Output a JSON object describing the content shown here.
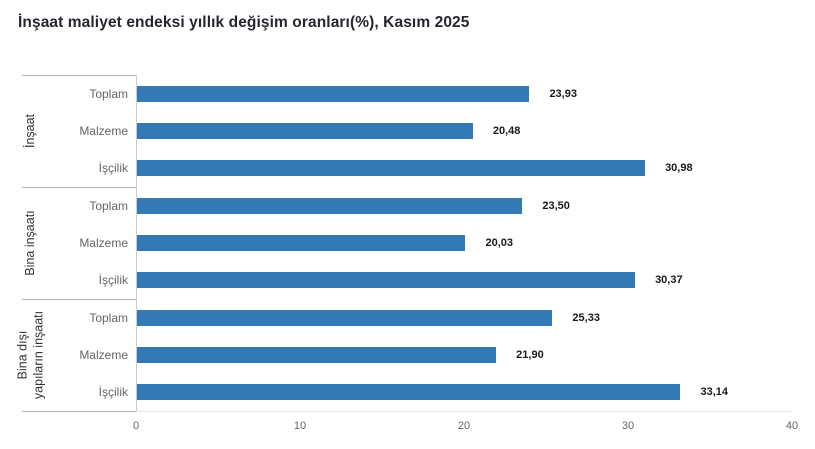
{
  "chart_data": {
    "type": "bar",
    "orientation": "horizontal",
    "title": "İnşaat maliyet endeksi yıllık değişim oranları(%), Kasım 2025",
    "unit": "%",
    "decimal_separator": ",",
    "xlim": [
      0,
      40
    ],
    "x_ticks": [
      "0",
      "10",
      "20",
      "30",
      "40"
    ],
    "grid": false,
    "legend": "none",
    "bar_color": "#3379b5",
    "groups": [
      {
        "name": "İnşaat",
        "name_lines": [
          "İnşaat"
        ],
        "categories": [
          "Toplam",
          "Malzeme",
          "İşçilik"
        ],
        "values": [
          23.93,
          20.48,
          30.98
        ],
        "value_labels": [
          "23,93",
          "20,48",
          "30,98"
        ]
      },
      {
        "name": "Bina inşaatı",
        "name_lines": [
          "Bina inşaatı"
        ],
        "categories": [
          "Toplam",
          "Malzeme",
          "İşçilik"
        ],
        "values": [
          23.5,
          20.03,
          30.37
        ],
        "value_labels": [
          "23,50",
          "20,03",
          "30,37"
        ]
      },
      {
        "name": "Bina dışı yapıların inşaatı",
        "name_lines": [
          "Bina dışı",
          "yapıların inşaatı"
        ],
        "categories": [
          "Toplam",
          "Malzeme",
          "İşçilik"
        ],
        "values": [
          25.33,
          21.9,
          33.14
        ],
        "value_labels": [
          "25,33",
          "21,90",
          "33,14"
        ]
      }
    ]
  }
}
